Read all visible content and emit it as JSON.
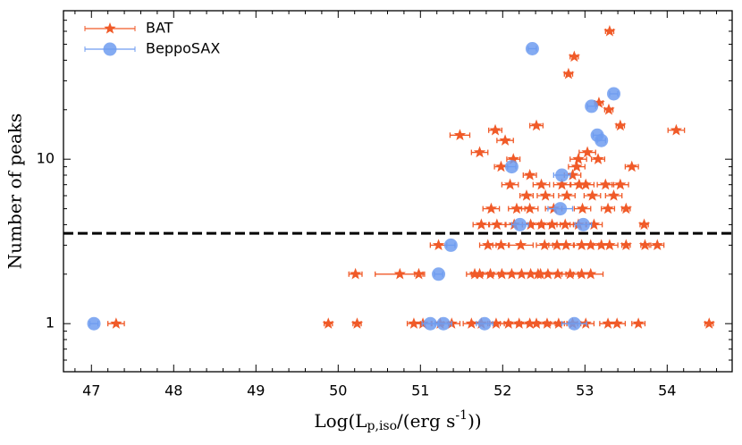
{
  "chart_data": {
    "type": "scatter",
    "xlabel": {
      "prefix": "Log(L",
      "sub": "p,iso",
      "mid": "/(erg s",
      "sup": "-1",
      "suffix": "))"
    },
    "ylabel": "Number of peaks",
    "xlim": [
      46.66,
      54.79
    ],
    "ylim": [
      0.51,
      80
    ],
    "log_y": true,
    "xticks": [
      47,
      48,
      49,
      50,
      51,
      52,
      53,
      54
    ],
    "yticks": [
      1,
      10
    ],
    "xminorticks": [
      46.8,
      47.2,
      47.4,
      47.6,
      47.8,
      48.2,
      48.4,
      48.6,
      48.8,
      49.2,
      49.4,
      49.6,
      49.8,
      50.2,
      50.4,
      50.6,
      50.8,
      51.2,
      51.4,
      51.6,
      51.8,
      52.2,
      52.4,
      52.6,
      52.8,
      53.2,
      53.4,
      53.6,
      53.8,
      54.2,
      54.4,
      54.6
    ],
    "yminorticks": [
      0.6,
      0.7,
      0.8,
      0.9,
      2,
      3,
      4,
      5,
      6,
      7,
      8,
      9,
      20,
      30,
      40,
      50,
      60,
      70
    ],
    "hline": 3.54,
    "legend": "upper left",
    "series": [
      {
        "name": "BAT",
        "color": "#f05a28",
        "marker": "star",
        "x": [
          47.3,
          49.88,
          50.23,
          50.92,
          51.03,
          51.24,
          51.38,
          51.62,
          51.74,
          51.92,
          52.07,
          52.2,
          52.33,
          52.41,
          52.54,
          52.68,
          52.85,
          53.01,
          53.28,
          53.39,
          53.65,
          54.51,
          50.21,
          50.75,
          50.98,
          51.66,
          51.72,
          51.85,
          51.99,
          52.11,
          52.23,
          52.34,
          52.43,
          52.46,
          52.55,
          52.67,
          52.82,
          52.96,
          53.07,
          51.22,
          51.82,
          51.98,
          52.22,
          52.51,
          52.66,
          52.77,
          52.96,
          53.07,
          53.2,
          53.3,
          53.5,
          53.73,
          53.88,
          51.74,
          51.93,
          52.14,
          52.34,
          52.47,
          52.6,
          52.76,
          52.92,
          53.11,
          53.72,
          51.86,
          52.17,
          52.33,
          52.62,
          52.97,
          53.28,
          53.5,
          52.29,
          52.52,
          52.78,
          53.09,
          53.35,
          52.09,
          52.47,
          52.72,
          52.93,
          53.01,
          53.25,
          53.43,
          52.33,
          52.85,
          51.98,
          52.9,
          53.57,
          52.13,
          52.92,
          53.16,
          51.72,
          53.03,
          52.03,
          51.48,
          51.91,
          54.11,
          52.41,
          53.43,
          53.29,
          53.17,
          52.8,
          52.87,
          53.3
        ],
        "values": [
          1,
          1,
          1,
          1,
          1,
          1,
          1,
          1,
          1,
          1,
          1,
          1,
          1,
          1,
          1,
          1,
          1,
          1,
          1,
          1,
          1,
          1,
          2,
          2,
          2,
          2,
          2,
          2,
          2,
          2,
          2,
          2,
          2,
          2,
          2,
          2,
          2,
          2,
          2,
          3,
          3,
          3,
          3,
          3,
          3,
          3,
          3,
          3,
          3,
          3,
          3,
          3,
          3,
          4,
          4,
          4,
          4,
          4,
          4,
          4,
          4,
          4,
          4,
          5,
          5,
          5,
          5,
          5,
          5,
          5,
          6,
          6,
          6,
          6,
          6,
          7,
          7,
          7,
          7,
          7,
          7,
          7,
          8,
          8,
          9,
          9,
          9,
          10,
          10,
          10,
          11,
          11,
          13,
          14,
          15,
          15,
          16,
          16,
          20,
          22,
          33,
          42,
          60
        ],
        "xerr": [
          0.1,
          0.05,
          0.05,
          0.08,
          0.1,
          0.1,
          0.1,
          0.1,
          0.1,
          0.1,
          0.1,
          0.1,
          0.1,
          0.1,
          0.1,
          0.1,
          0.1,
          0.1,
          0.1,
          0.1,
          0.08,
          0.05,
          0.08,
          0.3,
          0.05,
          0.1,
          0.1,
          0.1,
          0.1,
          0.1,
          0.1,
          0.1,
          0.1,
          0.1,
          0.1,
          0.1,
          0.1,
          0.1,
          0.15,
          0.1,
          0.1,
          0.1,
          0.15,
          0.1,
          0.1,
          0.1,
          0.1,
          0.1,
          0.1,
          0.1,
          0.05,
          0.05,
          0.08,
          0.1,
          0.1,
          0.1,
          0.1,
          0.1,
          0.1,
          0.1,
          0.1,
          0.1,
          0.05,
          0.1,
          0.1,
          0.1,
          0.1,
          0.1,
          0.08,
          0.05,
          0.08,
          0.1,
          0.1,
          0.1,
          0.1,
          0.1,
          0.1,
          0.1,
          0.1,
          0.1,
          0.1,
          0.1,
          0.08,
          0.1,
          0.08,
          0.1,
          0.08,
          0.08,
          0.1,
          0.08,
          0.1,
          0.1,
          0.1,
          0.12,
          0.08,
          0.1,
          0.08,
          0.05,
          0.05,
          0.05,
          0.05,
          0.05,
          0.05
        ]
      },
      {
        "name": "BeppoSAX",
        "color": "#6f9cf0",
        "marker": "circle",
        "x": [
          47.03,
          51.12,
          51.28,
          51.78,
          52.87,
          51.22,
          51.37,
          52.21,
          52.98,
          52.7,
          52.72,
          52.11,
          53.2,
          53.15,
          53.08,
          53.35,
          52.36
        ],
        "values": [
          1,
          1,
          1,
          1,
          1,
          2,
          3,
          4,
          4,
          5,
          8,
          9,
          13,
          14,
          21,
          25,
          47
        ],
        "xerr": [
          0.05,
          0.1,
          0.1,
          0.1,
          0.15,
          0.05,
          0.05,
          0.1,
          0.1,
          0.15,
          0.1,
          0.05,
          0.05,
          0.05,
          0.05,
          0.05,
          0.05
        ]
      }
    ]
  }
}
